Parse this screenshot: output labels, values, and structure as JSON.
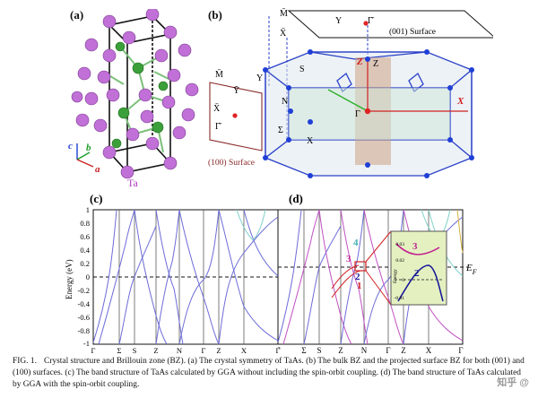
{
  "panels": {
    "a": {
      "label": "(a)",
      "element_label": "Ta",
      "axes": {
        "c": "c",
        "b": "b",
        "a": "a"
      }
    },
    "b": {
      "label": "(b)",
      "surface_001": {
        "title": "(001) Surface",
        "M": "M̄",
        "X": "X̄",
        "Y": "Y",
        "G": "Γ̄"
      },
      "surface_100": {
        "title": "(100) Surface",
        "M": "M̄",
        "Y": "Ȳ",
        "X": "X̄",
        "G": "Γ̄"
      },
      "bz_points": {
        "Z": "Z",
        "S": "S",
        "Y": "Y",
        "N": "N",
        "Sigma": "Σ",
        "X": "X",
        "G": "Γ",
        "X_red": "X",
        "Z_red": "Z"
      }
    },
    "c": {
      "label": "(c)",
      "ylabel": "Energy (eV)",
      "yticks": [
        "1",
        "0.8",
        "0.6",
        "0.4",
        "0.2",
        "0",
        "-0.2",
        "-0.4",
        "-0.6",
        "-0.8",
        "-1"
      ],
      "xticks": [
        "Γ",
        "Σ",
        "S",
        "Z",
        "N",
        "Γ",
        "Z",
        "X",
        "Γ"
      ]
    },
    "d": {
      "label": "(d)",
      "xticks": [
        "Γ",
        "Σ",
        "S",
        "Z",
        "N",
        "Γ",
        "Z",
        "X",
        "Γ"
      ],
      "fermi_label": "E",
      "fermi_sub": "F",
      "band_labels": [
        "1",
        "2",
        "3",
        "4"
      ],
      "inset": {
        "ylabel": "Energy",
        "yticks": [
          "0.03",
          "0.02",
          "0",
          "-0.01"
        ],
        "labels": [
          "3",
          "2"
        ]
      }
    }
  },
  "caption": {
    "lead": "FIG. 1.",
    "text": "Crystal structure and Brillouin zone (BZ). (a) The crystal symmetry of TaAs. (b) The bulk BZ and the projected surface BZ for both (001) and (100) surfaces. (c) The band structure of TaAs calculated by GGA without including the spin-orbit coupling. (d) The band structure of TaAs calculated by GGA with the spin-orbit coupling."
  },
  "watermark": "知乎 @"
}
